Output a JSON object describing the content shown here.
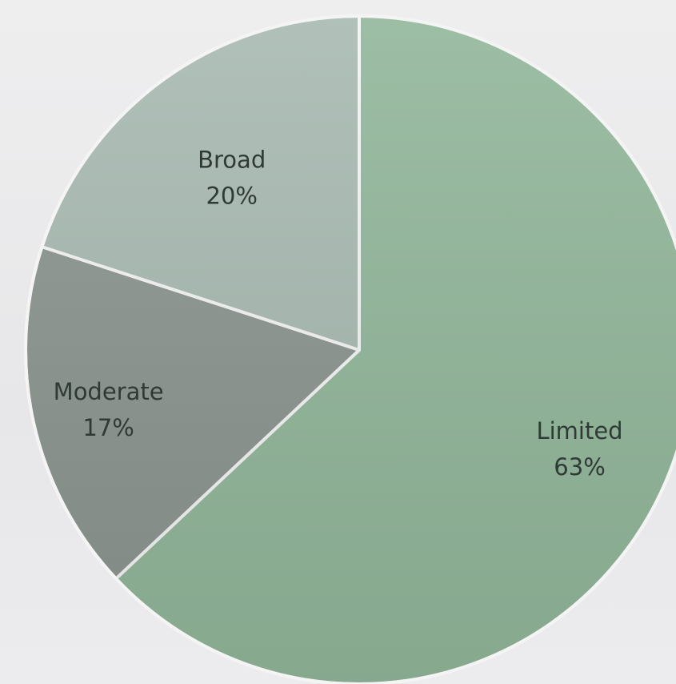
{
  "chart_data": {
    "type": "pie",
    "slices": [
      {
        "label": "Limited",
        "percent_label": "63%",
        "value": 63,
        "color": "#92b79a"
      },
      {
        "label": "Moderate",
        "percent_label": "17%",
        "value": 17,
        "color": "#8c9590"
      },
      {
        "label": "Broad",
        "percent_label": "20%",
        "value": 20,
        "color": "#a8bab1"
      }
    ],
    "start_angle": "12 o'clock",
    "direction": "clockwise",
    "legend": "none",
    "edge_color": "#f4f4f4"
  }
}
